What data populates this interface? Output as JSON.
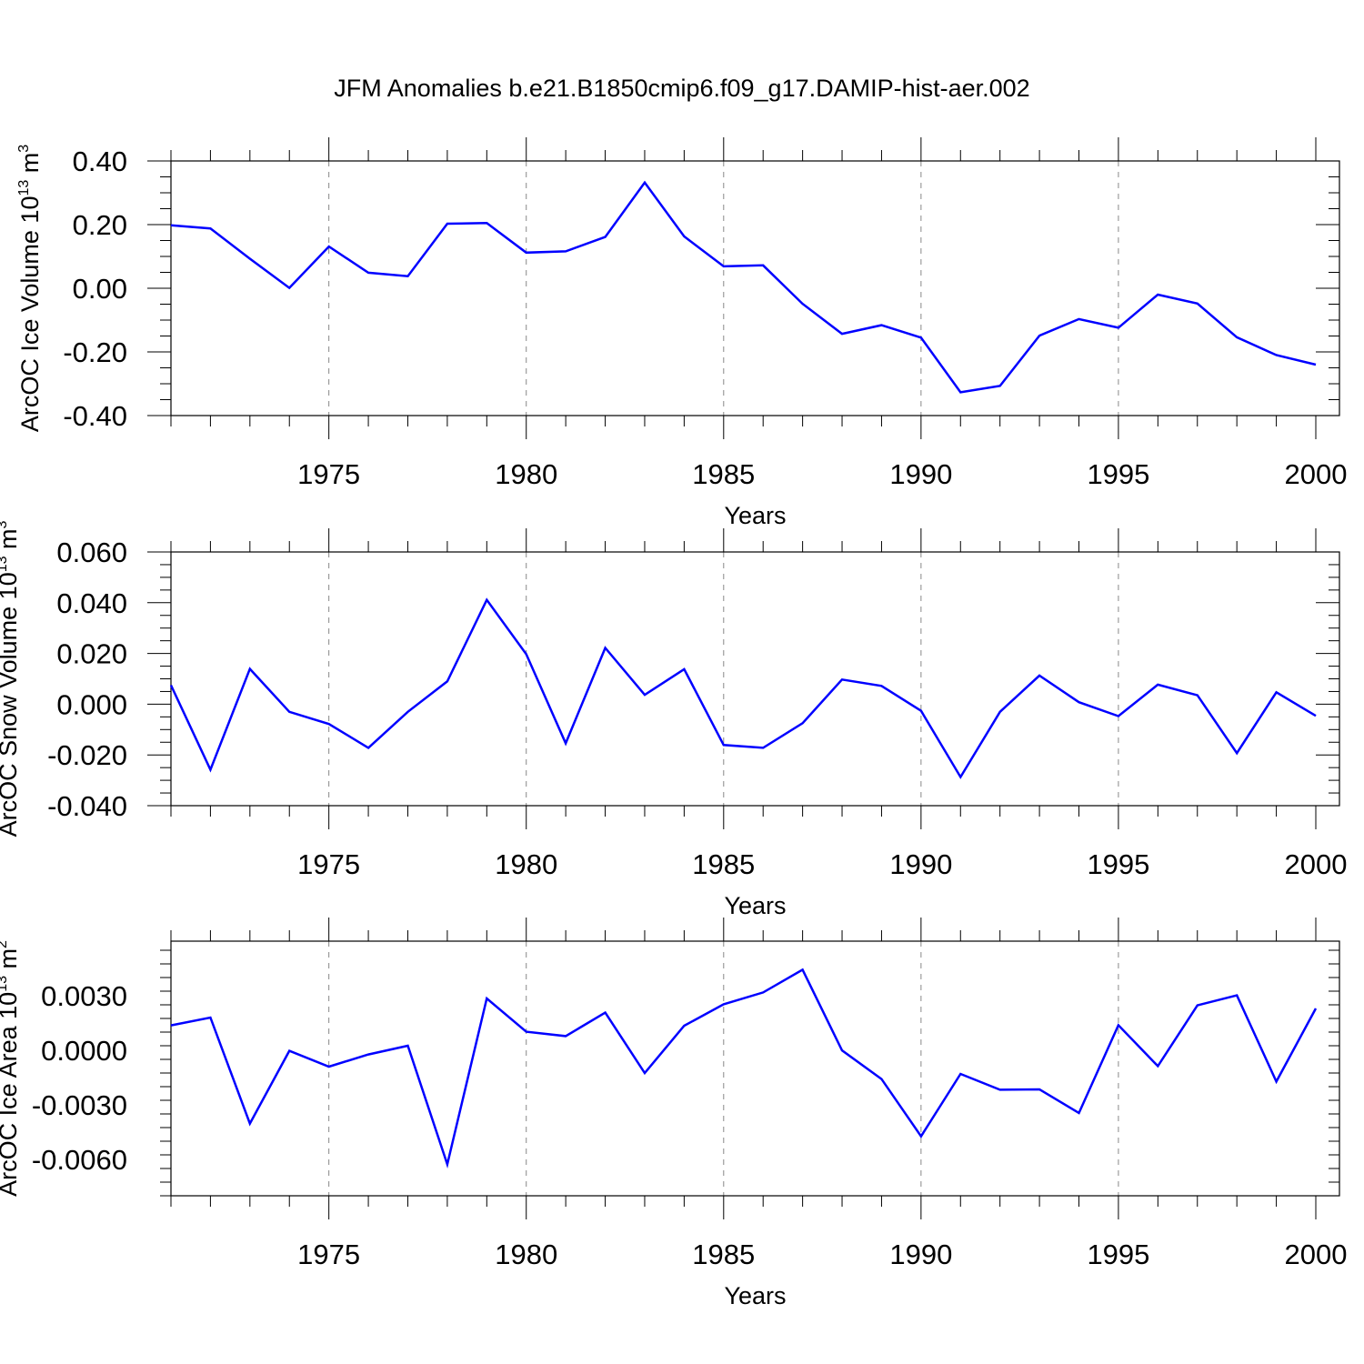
{
  "figure": {
    "title": "JFM Anomalies b.e21.B1850cmip6.f09_g17.DAMIP-hist-aer.002"
  },
  "chart_data": [
    {
      "type": "line",
      "title": "",
      "xlabel": "Years",
      "ylabel": "ArcOC Ice Volume 10",
      "ylabel_exponent": "13",
      "ylabel_unit": " m",
      "ylabel_unit_exponent": "3",
      "xlim": [
        1971,
        2000
      ],
      "ylim": [
        -0.4,
        0.4
      ],
      "xticks": [
        1975,
        1980,
        1985,
        1990,
        1995,
        2000
      ],
      "yticks": [
        -0.4,
        -0.2,
        0.0,
        0.2,
        0.4
      ],
      "ytick_labels": [
        "-0.40",
        "-0.20",
        "0.00",
        "0.20",
        "0.40"
      ],
      "grid": "dashed vertical at major x ticks",
      "color": "#0000ff",
      "series": [
        {
          "x": [
            1971,
            1972,
            1973,
            1974,
            1975,
            1976,
            1977,
            1978,
            1979,
            1980,
            1981,
            1982,
            1983,
            1984,
            1985,
            1986,
            1987,
            1988,
            1989,
            1990,
            1991,
            1992,
            1993,
            1994,
            1995,
            1996,
            1997,
            1998,
            1999,
            2000
          ],
          "values": [
            0.198,
            0.188,
            0.093,
            0.001,
            0.131,
            0.049,
            0.038,
            0.203,
            0.205,
            0.112,
            0.116,
            0.161,
            0.332,
            0.163,
            0.069,
            0.072,
            -0.049,
            -0.143,
            -0.116,
            -0.155,
            -0.327,
            -0.307,
            -0.149,
            -0.097,
            -0.124,
            -0.02,
            -0.048,
            -0.154,
            -0.21,
            -0.24
          ]
        }
      ]
    },
    {
      "type": "line",
      "title": "",
      "xlabel": "Years",
      "ylabel": "ArcOC Snow Volume 10",
      "ylabel_exponent": "13",
      "ylabel_unit": " m",
      "ylabel_unit_exponent": "3",
      "xlim": [
        1971,
        2000
      ],
      "ylim": [
        -0.04,
        0.06
      ],
      "xticks": [
        1975,
        1980,
        1985,
        1990,
        1995,
        2000
      ],
      "yticks": [
        -0.04,
        -0.02,
        0.0,
        0.02,
        0.04,
        0.06
      ],
      "ytick_labels": [
        "-0.040",
        "-0.020",
        "0.000",
        "0.020",
        "0.040",
        "0.060"
      ],
      "grid": "dashed vertical at major x ticks",
      "color": "#0000ff",
      "series": [
        {
          "x": [
            1971,
            1972,
            1973,
            1974,
            1975,
            1976,
            1977,
            1978,
            1979,
            1980,
            1981,
            1982,
            1983,
            1984,
            1985,
            1986,
            1987,
            1988,
            1989,
            1990,
            1991,
            1992,
            1993,
            1994,
            1995,
            1996,
            1997,
            1998,
            1999,
            2000
          ],
          "values": [
            0.0075,
            -0.0258,
            0.0139,
            -0.003,
            -0.0078,
            -0.0172,
            -0.003,
            0.009,
            0.0411,
            0.0197,
            -0.0154,
            0.0222,
            0.0037,
            0.0138,
            -0.0161,
            -0.0172,
            -0.0075,
            0.0097,
            0.0072,
            -0.0026,
            -0.0287,
            -0.003,
            0.0113,
            0.0008,
            -0.0047,
            0.0077,
            0.0035,
            -0.0193,
            0.0047,
            -0.0046
          ]
        }
      ]
    },
    {
      "type": "line",
      "title": "",
      "xlabel": "Years",
      "ylabel": "ArcOC Ice Area 10",
      "ylabel_exponent": "13",
      "ylabel_unit": " m",
      "ylabel_unit_exponent": "2",
      "xlim": [
        1971,
        2000
      ],
      "ylim": [
        -0.008,
        0.006
      ],
      "xticks": [
        1975,
        1980,
        1985,
        1990,
        1995,
        2000
      ],
      "yticks": [
        -0.006,
        -0.003,
        0.0,
        0.003
      ],
      "ytick_labels": [
        "-0.0060",
        "-0.0030",
        "0.0000",
        "0.0030"
      ],
      "grid": "dashed vertical at major x ticks",
      "color": "#0000ff",
      "series": [
        {
          "x": [
            1971,
            1972,
            1973,
            1974,
            1975,
            1976,
            1977,
            1978,
            1979,
            1980,
            1981,
            1982,
            1983,
            1984,
            1985,
            1986,
            1987,
            1988,
            1989,
            1990,
            1991,
            1992,
            1993,
            1994,
            1995,
            1996,
            1997,
            1998,
            1999,
            2000
          ],
          "values": [
            0.00137,
            0.0018,
            -0.00403,
            -3e-05,
            -0.0009,
            -0.00023,
            0.00025,
            -0.00627,
            0.00285,
            0.00102,
            0.00078,
            0.00207,
            -0.00125,
            0.00135,
            0.00253,
            0.00318,
            0.00443,
            -1e-05,
            -0.00158,
            -0.00473,
            -0.0013,
            -0.00217,
            -0.00215,
            -0.00345,
            0.00138,
            -0.00087,
            0.00247,
            0.00302,
            -0.00172,
            0.0023
          ]
        }
      ]
    }
  ]
}
